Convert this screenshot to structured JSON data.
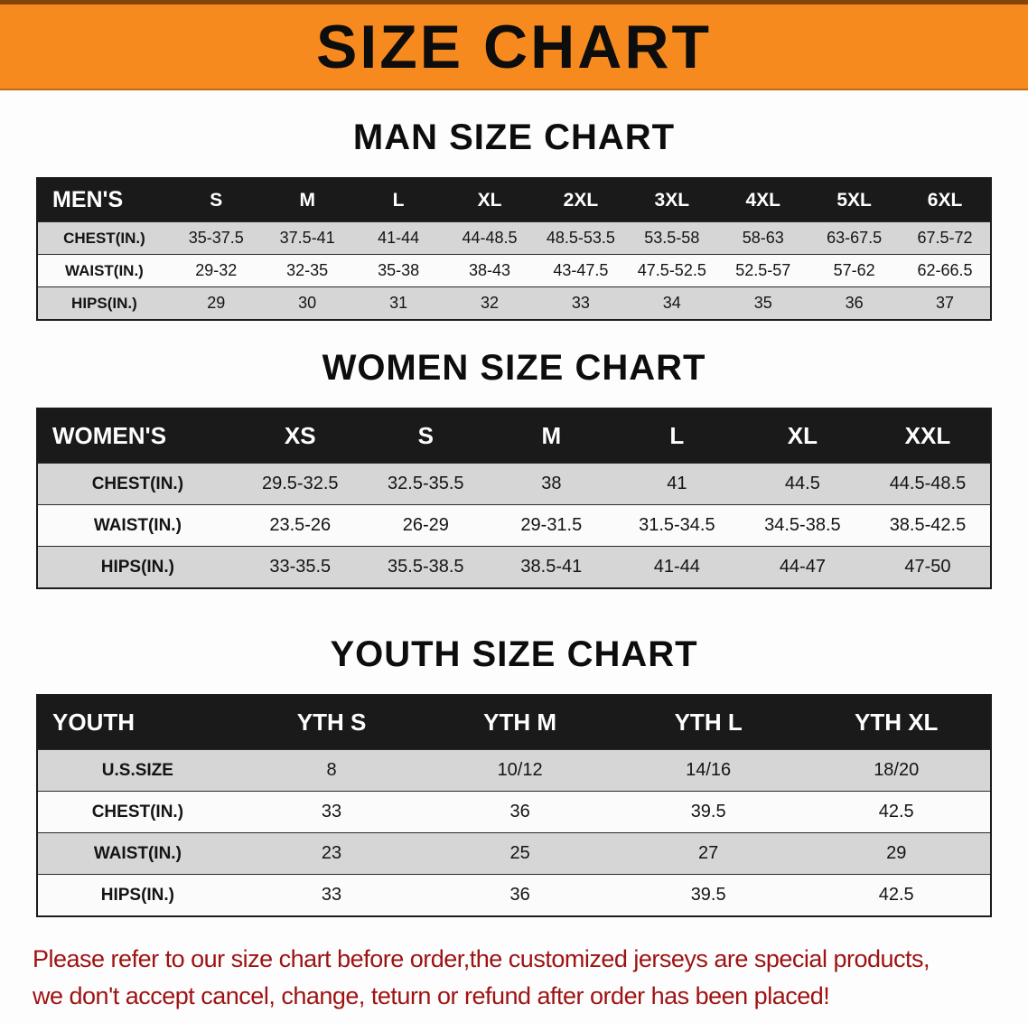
{
  "banner": {
    "title": "SIZE CHART"
  },
  "colors": {
    "accent": "#f68a1e",
    "header-bg": "#1a1a1a",
    "row-alt": "#d6d6d6",
    "notice": "#9e1212"
  },
  "sections": [
    {
      "heading": "MAN SIZE CHART",
      "table": {
        "header": [
          "MEN'S",
          "S",
          "M",
          "L",
          "XL",
          "2XL",
          "3XL",
          "4XL",
          "5XL",
          "6XL"
        ],
        "rows": [
          [
            "CHEST(IN.)",
            "35-37.5",
            "37.5-41",
            "41-44",
            "44-48.5",
            "48.5-53.5",
            "53.5-58",
            "58-63",
            "63-67.5",
            "67.5-72"
          ],
          [
            "WAIST(IN.)",
            "29-32",
            "32-35",
            "35-38",
            "38-43",
            "43-47.5",
            "47.5-52.5",
            "52.5-57",
            "57-62",
            "62-66.5"
          ],
          [
            "HIPS(IN.)",
            "29",
            "30",
            "31",
            "32",
            "33",
            "34",
            "35",
            "36",
            "37"
          ]
        ]
      }
    },
    {
      "heading": "WOMEN SIZE CHART",
      "table": {
        "header": [
          "WOMEN'S",
          "XS",
          "S",
          "M",
          "L",
          "XL",
          "XXL"
        ],
        "rows": [
          [
            "CHEST(IN.)",
            "29.5-32.5",
            "32.5-35.5",
            "38",
            "41",
            "44.5",
            "44.5-48.5"
          ],
          [
            "WAIST(IN.)",
            "23.5-26",
            "26-29",
            "29-31.5",
            "31.5-34.5",
            "34.5-38.5",
            "38.5-42.5"
          ],
          [
            "HIPS(IN.)",
            "33-35.5",
            "35.5-38.5",
            "38.5-41",
            "41-44",
            "44-47",
            "47-50"
          ]
        ]
      }
    },
    {
      "heading": "YOUTH SIZE CHART",
      "table": {
        "header": [
          "YOUTH",
          "YTH S",
          "YTH M",
          "YTH L",
          "YTH XL"
        ],
        "rows": [
          [
            "U.S.SIZE",
            "8",
            "10/12",
            "14/16",
            "18/20"
          ],
          [
            "CHEST(IN.)",
            "33",
            "36",
            "39.5",
            "42.5"
          ],
          [
            "WAIST(IN.)",
            "23",
            "25",
            "27",
            "29"
          ],
          [
            "HIPS(IN.)",
            "33",
            "36",
            "39.5",
            "42.5"
          ]
        ]
      }
    }
  ],
  "footer": {
    "line1": "Please refer to our size chart before order,the customized jerseys are special products,",
    "line2": "we don't accept cancel, change, teturn or refund after order has been placed!"
  }
}
